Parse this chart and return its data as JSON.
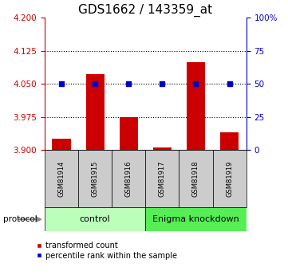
{
  "title": "GDS1662 / 143359_at",
  "samples": [
    "GSM81914",
    "GSM81915",
    "GSM81916",
    "GSM81917",
    "GSM81918",
    "GSM81919"
  ],
  "bar_values": [
    3.925,
    4.072,
    3.975,
    3.906,
    4.1,
    3.94
  ],
  "percentile_values": [
    50,
    50,
    50,
    50,
    50,
    50
  ],
  "ymin": 3.9,
  "ymax": 4.2,
  "yticks_left": [
    3.9,
    3.975,
    4.05,
    4.125,
    4.2
  ],
  "yticks_right": [
    0,
    25,
    50,
    75,
    100
  ],
  "yticks_right_labels": [
    "0",
    "25",
    "50",
    "75",
    "100%"
  ],
  "dotted_lines": [
    3.975,
    4.05,
    4.125
  ],
  "bar_color": "#cc0000",
  "dot_color": "#0000cc",
  "control_samples": 3,
  "knockdown_samples": 3,
  "protocol_label": "protocol",
  "control_label": "control",
  "knockdown_label": "Enigma knockdown",
  "legend_bar_label": "transformed count",
  "legend_dot_label": "percentile rank within the sample",
  "control_bg": "#bbffbb",
  "knockdown_bg": "#55ee55",
  "sample_bg": "#cccccc",
  "title_fontsize": 11,
  "axis_left_color": "#cc0000",
  "axis_right_color": "#0000cc"
}
